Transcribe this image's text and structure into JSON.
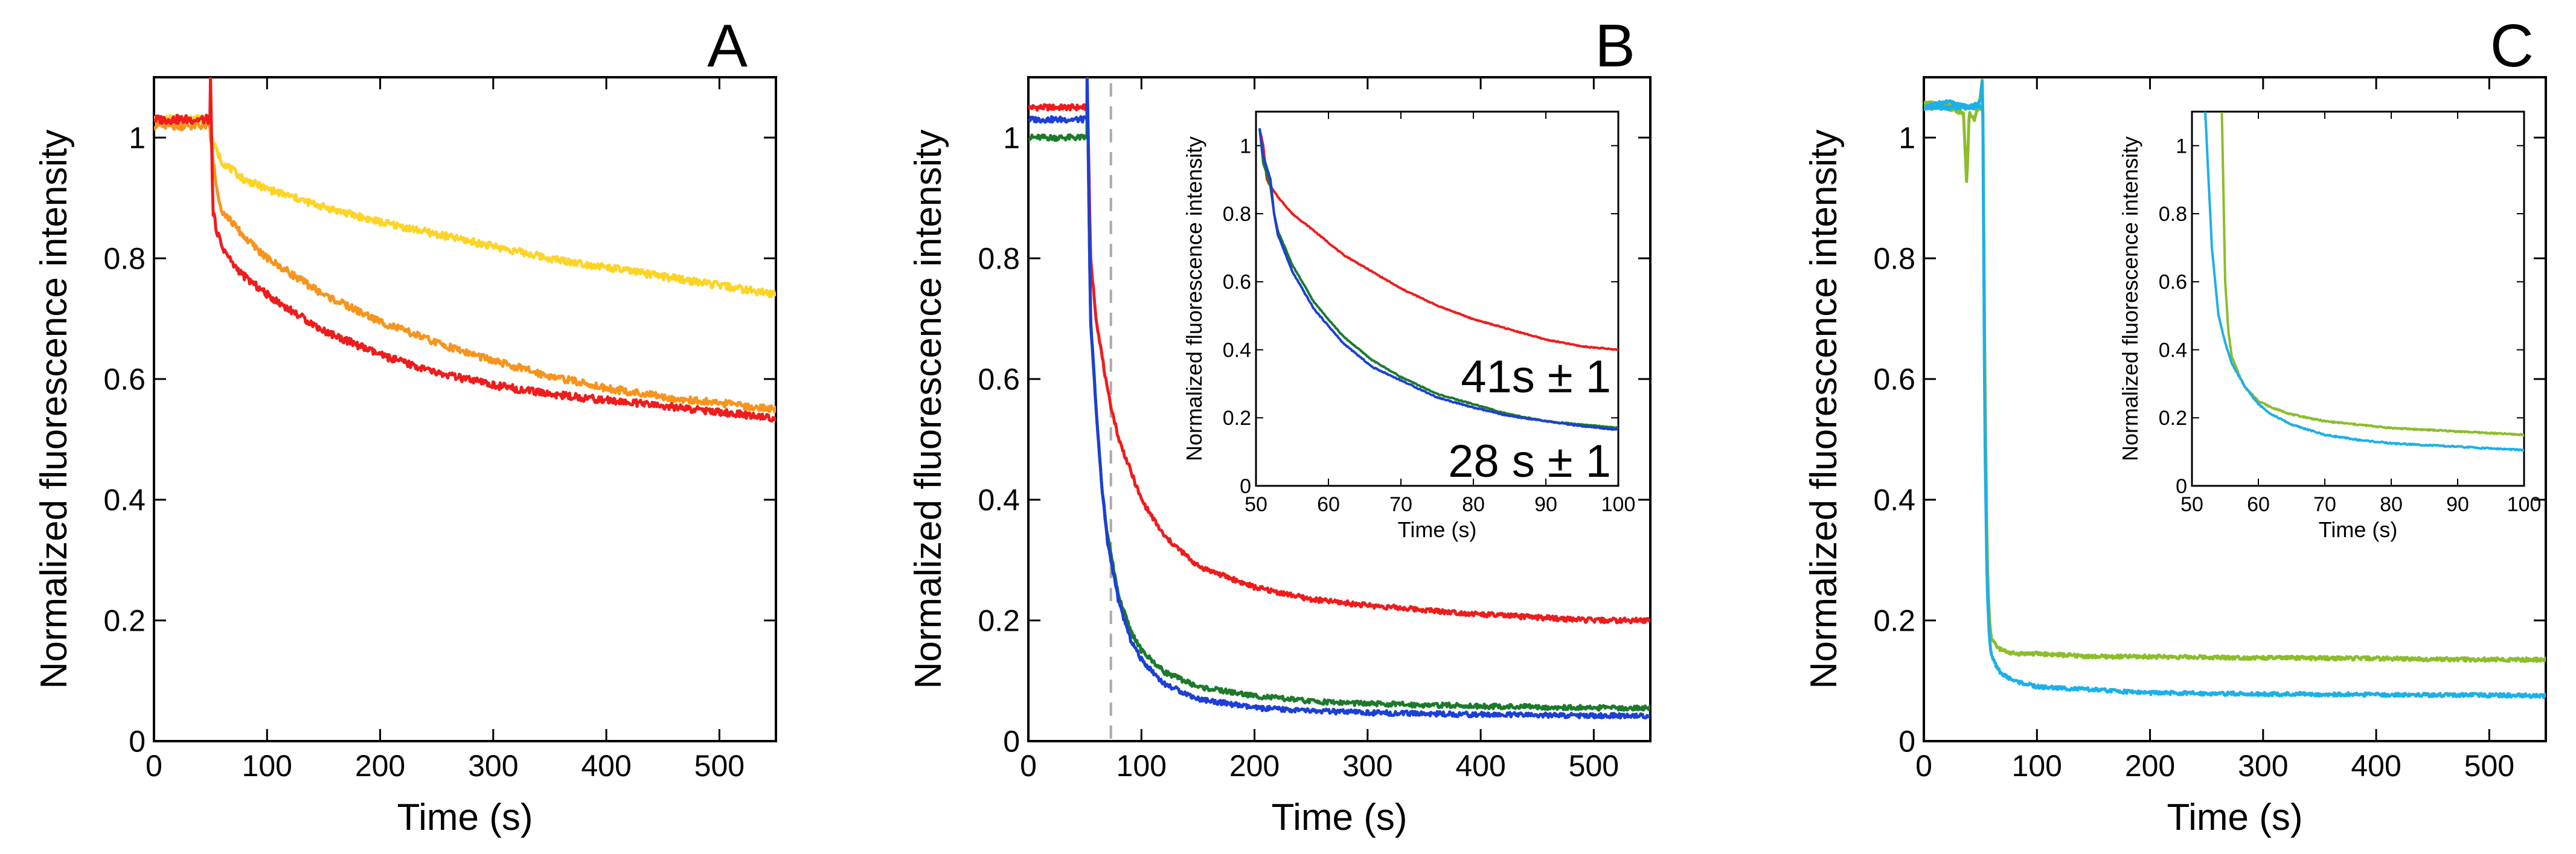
{
  "colors": {
    "red": "#ee1c1c",
    "orange": "#f7941d",
    "yellow": "#fdd426",
    "green": "#1c7a2a",
    "blue": "#1c3fd6",
    "lime": "#8cbd2a",
    "cyan": "#1cb0e8",
    "dashed": "#aaaaaa"
  },
  "chart_data": [
    {
      "id": "A",
      "type": "line",
      "panel_label": "A",
      "xlabel": "Time (s)",
      "ylabel": "Normalized fluorescence intensity",
      "xlim": [
        0,
        550
      ],
      "ylim": [
        0,
        1.1
      ],
      "xticks": [
        0,
        100,
        200,
        300,
        400,
        500
      ],
      "xtick_labels": [
        "0",
        "100",
        "200",
        "300",
        "400",
        "500"
      ],
      "yticks": [
        0,
        0.2,
        0.4,
        0.6,
        0.8,
        1
      ],
      "ytick_labels": [
        "0",
        "0.2",
        "0.4",
        "0.6",
        "0.8",
        "1"
      ],
      "series": [
        {
          "name": "yellow",
          "color_key": "yellow",
          "pre": 1.03,
          "t0": 50,
          "x": [
            50,
            60,
            80,
            100,
            150,
            200,
            250,
            300,
            350,
            400,
            450,
            500,
            550
          ],
          "y": [
            1.0,
            0.96,
            0.93,
            0.915,
            0.885,
            0.86,
            0.84,
            0.82,
            0.8,
            0.785,
            0.77,
            0.755,
            0.74
          ]
        },
        {
          "name": "orange",
          "color_key": "orange",
          "pre": 1.02,
          "t0": 50,
          "x": [
            50,
            55,
            60,
            80,
            100,
            150,
            200,
            250,
            300,
            350,
            400,
            450,
            500,
            550
          ],
          "y": [
            1.0,
            0.92,
            0.88,
            0.835,
            0.8,
            0.74,
            0.695,
            0.66,
            0.63,
            0.605,
            0.585,
            0.57,
            0.56,
            0.55
          ]
        },
        {
          "name": "red",
          "color_key": "red",
          "pre": 1.03,
          "t0": 50,
          "x": [
            50,
            52,
            55,
            60,
            70,
            80,
            100,
            120,
            150,
            200,
            250,
            300,
            350,
            400,
            450,
            500,
            550
          ],
          "y": [
            1.1,
            0.88,
            0.85,
            0.82,
            0.79,
            0.77,
            0.74,
            0.715,
            0.68,
            0.64,
            0.61,
            0.59,
            0.575,
            0.565,
            0.555,
            0.545,
            0.535
          ]
        }
      ]
    },
    {
      "id": "B",
      "type": "line",
      "panel_label": "B",
      "xlabel": "Time (s)",
      "ylabel": "Normalized fluorescence intensity",
      "xlim": [
        0,
        550
      ],
      "ylim": [
        0,
        1.1
      ],
      "xticks": [
        0,
        100,
        200,
        300,
        400,
        500
      ],
      "xtick_labels": [
        "0",
        "100",
        "200",
        "300",
        "400",
        "500"
      ],
      "yticks": [
        0,
        0.2,
        0.4,
        0.6,
        0.8,
        1
      ],
      "ytick_labels": [
        "0",
        "0.2",
        "0.4",
        "0.6",
        "0.8",
        "1"
      ],
      "vline_x": 73,
      "series": [
        {
          "name": "red",
          "color_key": "red",
          "pre": 1.05,
          "t0": 52,
          "x": [
            52,
            55,
            60,
            70,
            80,
            100,
            120,
            150,
            200,
            250,
            300,
            400,
            500,
            550
          ],
          "y": [
            1.1,
            0.8,
            0.7,
            0.58,
            0.5,
            0.4,
            0.34,
            0.29,
            0.255,
            0.235,
            0.225,
            0.21,
            0.2,
            0.2
          ]
        },
        {
          "name": "green",
          "color_key": "green",
          "pre": 1.0,
          "t0": 52,
          "x": [
            52,
            55,
            60,
            65,
            70,
            80,
            90,
            100,
            120,
            150,
            200,
            250,
            300,
            400,
            500,
            550
          ],
          "y": [
            1.1,
            0.7,
            0.55,
            0.42,
            0.34,
            0.24,
            0.185,
            0.15,
            0.115,
            0.09,
            0.075,
            0.066,
            0.062,
            0.058,
            0.055,
            0.055
          ]
        },
        {
          "name": "blue",
          "color_key": "blue",
          "pre": 1.03,
          "t0": 52,
          "x": [
            52,
            55,
            60,
            65,
            70,
            80,
            90,
            100,
            120,
            150,
            200,
            250,
            300,
            400,
            500,
            550
          ],
          "y": [
            1.1,
            0.7,
            0.55,
            0.42,
            0.33,
            0.23,
            0.17,
            0.135,
            0.095,
            0.07,
            0.055,
            0.05,
            0.047,
            0.044,
            0.042,
            0.042
          ]
        }
      ],
      "inset": {
        "xlabel": "Time (s)",
        "ylabel": "Normalized fluorescence intensity",
        "xlim": [
          50,
          100
        ],
        "ylim": [
          0,
          1.1
        ],
        "xticks": [
          50,
          60,
          70,
          80,
          90,
          100
        ],
        "xtick_labels": [
          "50",
          "60",
          "70",
          "80",
          "90",
          "100"
        ],
        "yticks": [
          0,
          0.2,
          0.4,
          0.6,
          0.8,
          1
        ],
        "ytick_labels": [
          "0",
          "0.2",
          "0.4",
          "0.6",
          "0.8",
          "1"
        ],
        "annotations": [
          "41s ± 1",
          "28 s ± 1"
        ],
        "series": [
          {
            "name": "red",
            "color_key": "red",
            "x": [
              50.5,
              51,
              51.5,
              52,
              53,
              55,
              58,
              62,
              66,
              70,
              75,
              80,
              85,
              90,
              95,
              100
            ],
            "y": [
              1.05,
              1.0,
              0.9,
              0.88,
              0.85,
              0.8,
              0.75,
              0.68,
              0.63,
              0.58,
              0.53,
              0.49,
              0.46,
              0.43,
              0.41,
              0.4
            ]
          },
          {
            "name": "green",
            "color_key": "green",
            "x": [
              50.5,
              51,
              52,
              52.5,
              53,
              55,
              58,
              62,
              66,
              70,
              75,
              80,
              85,
              90,
              95,
              100
            ],
            "y": [
              1.05,
              0.95,
              0.88,
              0.8,
              0.75,
              0.65,
              0.54,
              0.44,
              0.37,
              0.32,
              0.27,
              0.24,
              0.21,
              0.19,
              0.18,
              0.17
            ]
          },
          {
            "name": "blue",
            "color_key": "blue",
            "x": [
              50.5,
              51,
              52,
              52.5,
              53,
              55,
              58,
              62,
              66,
              70,
              75,
              80,
              85,
              90,
              95,
              100
            ],
            "y": [
              1.05,
              0.97,
              0.9,
              0.8,
              0.74,
              0.63,
              0.52,
              0.42,
              0.35,
              0.31,
              0.26,
              0.23,
              0.205,
              0.19,
              0.175,
              0.165
            ]
          }
        ]
      }
    },
    {
      "id": "C",
      "type": "line",
      "panel_label": "C",
      "xlabel": "Time (s)",
      "ylabel": "Normalized fluorescence intensity",
      "xlim": [
        0,
        550
      ],
      "ylim": [
        0,
        1.1
      ],
      "xticks": [
        0,
        100,
        200,
        300,
        400,
        500
      ],
      "xtick_labels": [
        "0",
        "100",
        "200",
        "300",
        "400",
        "500"
      ],
      "yticks": [
        0,
        0.2,
        0.4,
        0.6,
        0.8,
        1
      ],
      "ytick_labels": [
        "0",
        "0.2",
        "0.4",
        "0.6",
        "0.8",
        "1"
      ],
      "series": [
        {
          "name": "lime",
          "color_key": "lime",
          "pre": 1.05,
          "t0": 52,
          "x": [
            0,
            20,
            35,
            38,
            40,
            45,
            48,
            50,
            52,
            54,
            56,
            58,
            60,
            65,
            70,
            80,
            100,
            150,
            200,
            300,
            400,
            500,
            550
          ],
          "y": [
            1.06,
            1.05,
            1.04,
            0.92,
            1.04,
            1.03,
            1.05,
            1.07,
            1.1,
            0.6,
            0.3,
            0.2,
            0.17,
            0.155,
            0.15,
            0.145,
            0.145,
            0.14,
            0.14,
            0.138,
            0.137,
            0.135,
            0.135
          ]
        },
        {
          "name": "cyan",
          "color_key": "cyan",
          "pre": 1.05,
          "t0": 52,
          "x": [
            0,
            20,
            40,
            50,
            52,
            54,
            56,
            58,
            60,
            65,
            70,
            80,
            100,
            150,
            200,
            300,
            400,
            500,
            550
          ],
          "y": [
            1.05,
            1.06,
            1.05,
            1.06,
            1.1,
            0.5,
            0.25,
            0.17,
            0.14,
            0.12,
            0.11,
            0.1,
            0.09,
            0.085,
            0.08,
            0.078,
            0.077,
            0.076,
            0.075
          ]
        }
      ],
      "inset": {
        "xlabel": "Time (s)",
        "ylabel": "Normalized fluorescence intensity",
        "xlim": [
          50,
          100
        ],
        "ylim": [
          0,
          1.1
        ],
        "xticks": [
          50,
          60,
          70,
          80,
          90,
          100
        ],
        "xtick_labels": [
          "50",
          "60",
          "70",
          "80",
          "90",
          "100"
        ],
        "yticks": [
          0,
          0.2,
          0.4,
          0.6,
          0.8,
          1
        ],
        "ytick_labels": [
          "0",
          "0.2",
          "0.4",
          "0.6",
          "0.8",
          "1"
        ],
        "series": [
          {
            "name": "lime",
            "color_key": "lime",
            "x": [
              54.5,
              55,
              55.5,
              56,
              57,
              58,
              60,
              62,
              65,
              70,
              75,
              80,
              85,
              90,
              95,
              100
            ],
            "y": [
              1.1,
              0.6,
              0.45,
              0.38,
              0.33,
              0.29,
              0.25,
              0.23,
              0.21,
              0.19,
              0.18,
              0.17,
              0.165,
              0.16,
              0.155,
              0.15
            ]
          },
          {
            "name": "cyan",
            "color_key": "cyan",
            "x": [
              52,
              53,
              54,
              55,
              56,
              58,
              60,
              62,
              65,
              70,
              75,
              80,
              85,
              90,
              95,
              100
            ],
            "y": [
              1.1,
              0.7,
              0.5,
              0.42,
              0.36,
              0.29,
              0.24,
              0.21,
              0.18,
              0.15,
              0.135,
              0.125,
              0.12,
              0.115,
              0.11,
              0.105
            ]
          }
        ]
      }
    }
  ]
}
